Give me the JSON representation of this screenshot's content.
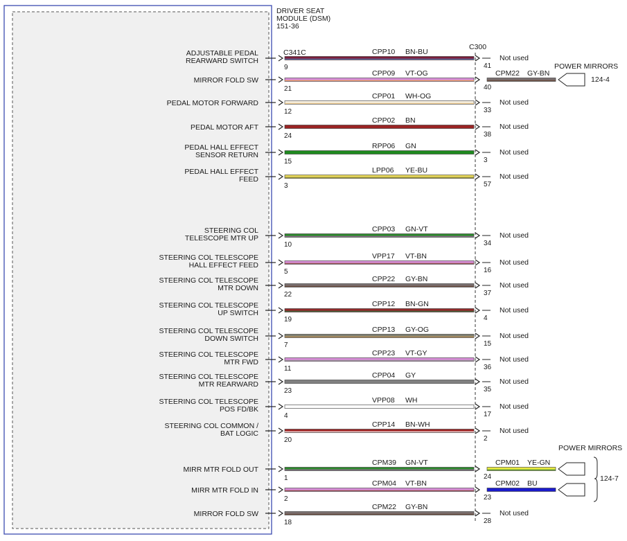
{
  "module": {
    "title_lines": [
      "DRIVER SEAT",
      "MODULE (DSM)",
      "151-36"
    ]
  },
  "connectors": {
    "left": "C341C",
    "right": "C300"
  },
  "colors": {
    "BN-BU": [
      "#7a1f3a",
      "#5a7ab8"
    ],
    "VT-OG": [
      "#d88ed8",
      "#e8a050"
    ],
    "WH-OG": [
      "#f6efe0",
      "#e8c080"
    ],
    "BN": [
      "#9a2424",
      null
    ],
    "GN": [
      "#1f8a1f",
      null
    ],
    "YE-BU": [
      "#e8d85a",
      "#7a7a3a"
    ],
    "GN-VT": [
      "#2f8a2f",
      "#a060a0"
    ],
    "VT-BN": [
      "#d88ed8",
      "#8a4a3a"
    ],
    "GY-BN": [
      "#7a7070",
      "#6a4a3a"
    ],
    "BN-GN": [
      "#922a2a",
      "#3a6a3a"
    ],
    "GY-OG": [
      "#808070",
      "#c09050"
    ],
    "VT-GY": [
      "#d88ed8",
      "#909090"
    ],
    "GY": [
      "#808080",
      null
    ],
    "WH": [
      "#ffffff",
      null
    ],
    "BN-WH": [
      "#a02828",
      "#ffffff"
    ],
    "YE-GN": [
      "#e8e840",
      "#3a8a3a"
    ],
    "BU": [
      "#1c1ccc",
      null
    ]
  },
  "wires": [
    {
      "label_lines": [
        "ADJUSTABLE PEDAL",
        "REARWARD SWITCH"
      ],
      "pin_left": "9",
      "circuit": "CPP10",
      "color": "BN-BU",
      "pin_right": "41",
      "status": "Not used"
    },
    {
      "label_lines": [
        "MIRROR FOLD SW"
      ],
      "pin_left": "21",
      "circuit": "CPP09",
      "color": "VT-OG",
      "pin_right": "40",
      "ext_circuit": "CPM22",
      "ext_color": "GY-BN"
    },
    {
      "label_lines": [
        "PEDAL MOTOR FORWARD"
      ],
      "pin_left": "12",
      "circuit": "CPP01",
      "color": "WH-OG",
      "pin_right": "33",
      "status": "Not used"
    },
    {
      "label_lines": [
        "PEDAL MOTOR AFT"
      ],
      "pin_left": "24",
      "circuit": "CPP02",
      "color": "BN",
      "pin_right": "38",
      "status": "Not used"
    },
    {
      "label_lines": [
        "PEDAL HALL EFFECT",
        "SENSOR RETURN"
      ],
      "pin_left": "15",
      "circuit": "RPP06",
      "color": "GN",
      "pin_right": "3",
      "status": "Not used"
    },
    {
      "label_lines": [
        "PEDAL HALL EFFECT",
        "FEED"
      ],
      "pin_left": "3",
      "circuit": "LPP06",
      "color": "YE-BU",
      "pin_right": "57",
      "status": "Not used"
    },
    {
      "label_lines": [
        "STEERING COL",
        "TELESCOPE MTR UP"
      ],
      "pin_left": "10",
      "circuit": "CPP03",
      "color": "GN-VT",
      "pin_right": "34",
      "status": "Not used"
    },
    {
      "label_lines": [
        "STEERING COL TELESCOPE",
        "HALL EFFECT FEED"
      ],
      "pin_left": "5",
      "circuit": "VPP17",
      "color": "VT-BN",
      "pin_right": "16",
      "status": "Not used"
    },
    {
      "label_lines": [
        "STEERING COL TELESCOPE",
        "MTR DOWN"
      ],
      "pin_left": "22",
      "circuit": "CPP22",
      "color": "GY-BN",
      "pin_right": "37",
      "status": "Not used"
    },
    {
      "label_lines": [
        "STEERING COL TELESCOPE",
        "UP SWITCH"
      ],
      "pin_left": "19",
      "circuit": "CPP12",
      "color": "BN-GN",
      "pin_right": "4",
      "status": "Not used"
    },
    {
      "label_lines": [
        "STEERING COL TELESCOPE",
        "DOWN SWITCH"
      ],
      "pin_left": "7",
      "circuit": "CPP13",
      "color": "GY-OG",
      "pin_right": "15",
      "status": "Not used"
    },
    {
      "label_lines": [
        "STEERING COL TELESCOPE",
        "MTR FWD"
      ],
      "pin_left": "11",
      "circuit": "CPP23",
      "color": "VT-GY",
      "pin_right": "36",
      "status": "Not used"
    },
    {
      "label_lines": [
        "STEERING COL TELESCOPE",
        "MTR REARWARD"
      ],
      "pin_left": "23",
      "circuit": "CPP04",
      "color": "GY",
      "pin_right": "35",
      "status": "Not used"
    },
    {
      "label_lines": [
        "STEERING COL TELESCOPE",
        "POS FD/BK"
      ],
      "pin_left": "4",
      "circuit": "VPP08",
      "color": "WH",
      "pin_right": "17",
      "status": "Not used"
    },
    {
      "label_lines": [
        "STEERING COL COMMON /",
        "BAT LOGIC"
      ],
      "pin_left": "20",
      "circuit": "CPP14",
      "color": "BN-WH",
      "pin_right": "2",
      "status": "Not used"
    },
    {
      "label_lines": [
        "MIRR MTR FOLD OUT"
      ],
      "pin_left": "1",
      "circuit": "CPM39",
      "color": "GN-VT",
      "pin_right": "24",
      "ext_circuit": "CPM01",
      "ext_color": "YE-GN"
    },
    {
      "label_lines": [
        "MIRR MTR FOLD IN"
      ],
      "pin_left": "2",
      "circuit": "CPM04",
      "color": "VT-BN",
      "pin_right": "23",
      "ext_circuit": "CPM02",
      "ext_color": "BU"
    },
    {
      "label_lines": [
        "MIRROR FOLD SW"
      ],
      "pin_left": "18",
      "circuit": "CPM22",
      "color": "GY-BN",
      "pin_right": "28",
      "status": "Not used"
    }
  ],
  "destinations": [
    {
      "title": "POWER MIRRORS",
      "ref": "124-4"
    },
    {
      "title": "POWER MIRRORS",
      "ref": "124-7"
    }
  ]
}
